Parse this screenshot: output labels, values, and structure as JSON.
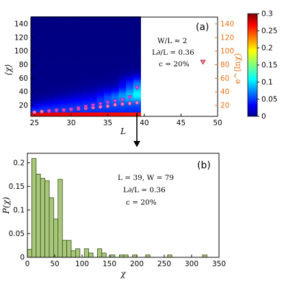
{
  "panels": {
    "a": {
      "label": "(a)",
      "xlabel": "L",
      "ylabel_left": "⟨χ⟩",
      "ylabel_right": "e^⟨lnχ⟩",
      "annotation": [
        "W/L ≈ 2",
        "L∂/L = 0.36",
        "c = 20%"
      ],
      "x_ticks": [
        "25",
        "30",
        "35",
        "40",
        "45",
        "50"
      ],
      "y_ticks_left": [
        "20",
        "40",
        "60",
        "80",
        "100",
        "120",
        "140"
      ],
      "y_ticks_right": [
        "20",
        "40",
        "60",
        "80",
        "100",
        "120",
        "140"
      ],
      "colorbar_ticks": [
        "0",
        "0.05",
        "0.1",
        "0.15",
        "0.2",
        "0.25",
        "0.3"
      ]
    },
    "b": {
      "label": "(b)",
      "xlabel": "χ",
      "ylabel": "P(χ)",
      "annotation": [
        "L = 39,  W = 79",
        "L∂/L = 0.36",
        "c = 20%"
      ],
      "x_ticks": [
        "0",
        "50",
        "100",
        "150",
        "200",
        "250",
        "300",
        "350"
      ],
      "y_ticks": [
        "0",
        "0.05",
        "0.1",
        "0.15",
        "0.2"
      ]
    }
  },
  "colors": {
    "histogram_fill": "#a9c77a",
    "histogram_edge": "#2f4a17",
    "orange_axis": "#e8700f",
    "marker_magenta": "#e040e0",
    "marker_red": "#c0202f"
  },
  "chart_data": [
    {
      "type": "heatmap",
      "title": "",
      "xlabel": "L",
      "ylabel": "⟨χ⟩",
      "xlim": [
        24.5,
        50
      ],
      "ylim": [
        4,
        150
      ],
      "colorbar": {
        "min": 0,
        "max": 0.3,
        "colormap": "jet"
      },
      "x": [
        25,
        26,
        27,
        28,
        29,
        30,
        31,
        32,
        33,
        34,
        35,
        36,
        37,
        38,
        39
      ],
      "series": [
        {
          "marker": "circle",
          "axis": "right",
          "x": [
            25,
            26,
            27,
            28,
            29,
            30,
            31,
            32,
            33,
            34,
            35,
            36,
            37,
            38,
            39
          ],
          "y": [
            10,
            11,
            12,
            13,
            13,
            14,
            15,
            16,
            17,
            18,
            19,
            21,
            22,
            23,
            24
          ]
        },
        {
          "marker": "triangle-down",
          "axis": "left",
          "x": [
            27,
            28,
            29,
            30,
            31,
            32,
            33,
            34,
            35,
            36,
            37,
            38,
            39,
            48
          ],
          "y": [
            11,
            12,
            13,
            14,
            16,
            18,
            20,
            22,
            24,
            26,
            28,
            32,
            46,
            84
          ]
        }
      ]
    },
    {
      "type": "bar",
      "title": "",
      "xlabel": "χ",
      "ylabel": "P(χ)",
      "xlim": [
        0,
        350
      ],
      "ylim": [
        0,
        0.22
      ],
      "bin_width": 8,
      "bins_start": [
        0,
        8,
        16,
        24,
        32,
        40,
        48,
        56,
        64,
        72,
        80,
        88,
        96,
        104,
        112,
        120,
        128,
        136,
        144,
        152,
        160,
        168,
        176,
        184,
        192,
        200,
        208,
        216,
        224,
        232,
        240,
        248,
        256,
        264,
        272,
        280,
        288,
        296,
        304,
        312,
        320
      ],
      "values": [
        0.017,
        0.209,
        0.176,
        0.167,
        0.162,
        0.126,
        0.081,
        0.165,
        0.036,
        0.036,
        0.014,
        0.018,
        0.0,
        0.018,
        0.009,
        0.0,
        0.018,
        0.009,
        0.0,
        0.005,
        0.0,
        0.005,
        0.005,
        0.0,
        0.005,
        0.0,
        0.0,
        0.005,
        0.0,
        0.0,
        0.0,
        0.0,
        0.005,
        0.0,
        0.0,
        0.0,
        0.0,
        0.0,
        0.0,
        0.0,
        0.005
      ]
    }
  ]
}
